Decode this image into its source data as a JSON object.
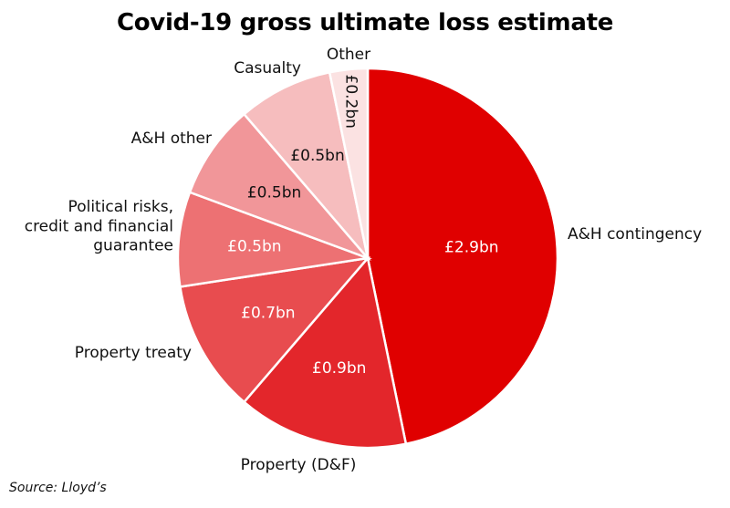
{
  "chart_data": {
    "type": "pie",
    "title": "Covid-19 gross ultimate loss estimate",
    "source": "Source: Lloyd’s",
    "unit_prefix": "£",
    "unit_suffix": "bn",
    "slices": [
      {
        "label": "A&H contingency",
        "label_lines": [
          "A&H contingency"
        ],
        "value": 2.9,
        "value_label": "£2.9bn",
        "color": "#e00000",
        "text_color": "#ffffff"
      },
      {
        "label": "Property (D&F)",
        "label_lines": [
          "Property (D&F)"
        ],
        "value": 0.9,
        "value_label": "£0.9bn",
        "color": "#e3262b",
        "text_color": "#ffffff"
      },
      {
        "label": "Property treaty",
        "label_lines": [
          "Property treaty"
        ],
        "value": 0.7,
        "value_label": "£0.7bn",
        "color": "#e84c4f",
        "text_color": "#ffffff"
      },
      {
        "label": "Political risks, credit and financial guarantee",
        "label_lines": [
          "Political risks,",
          "credit and financial",
          "guarantee"
        ],
        "value": 0.5,
        "value_label": "£0.5bn",
        "color": "#ed7173",
        "text_color": "#ffffff"
      },
      {
        "label": "A&H other",
        "label_lines": [
          "A&H other"
        ],
        "value": 0.5,
        "value_label": "£0.5bn",
        "color": "#f19699",
        "text_color": "#111111"
      },
      {
        "label": "Casualty",
        "label_lines": [
          "Casualty"
        ],
        "value": 0.5,
        "value_label": "£0.5bn",
        "color": "#f6bdbe",
        "text_color": "#111111"
      },
      {
        "label": "Other",
        "label_lines": [
          "Other"
        ],
        "value": 0.2,
        "value_label": "£0.2bn",
        "color": "#fbe2e2",
        "text_color": "#111111"
      }
    ]
  }
}
